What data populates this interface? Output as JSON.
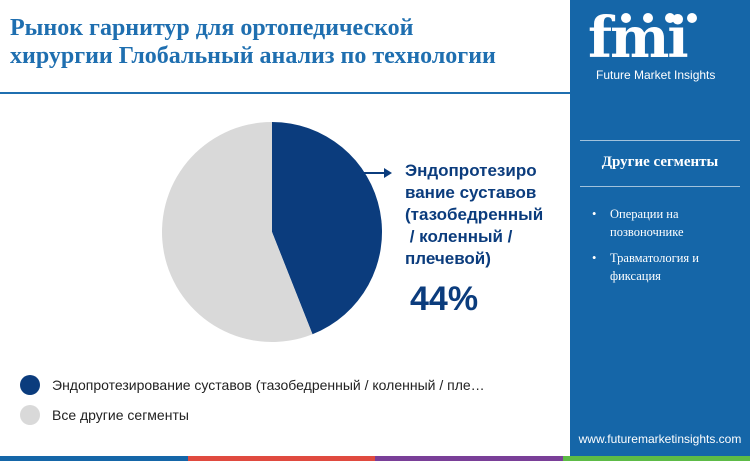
{
  "title": {
    "lines": [
      "Рынок гарнитур для ортопедической",
      "хирургии Глобальный анализ по технологии"
    ]
  },
  "callout": {
    "label_lines": [
      "Эндопротезиро",
      "вание суставов",
      "(тазобедренный",
      " / коленный /",
      "плечевой)"
    ],
    "value": "44%"
  },
  "legend": [
    {
      "label": "Эндопротезирование суставов (тазобедренный / коленный / пле…",
      "color": "#0b3c7d"
    },
    {
      "label": "Все другие сегменты",
      "color": "#d9d9d9"
    }
  ],
  "sidebar": {
    "logo_text": "fmi",
    "logo_subtitle": "Future Market Insights",
    "title": "Другие сегменты",
    "items": [
      "Операции на позвоночнике",
      "Травматология и фиксация"
    ],
    "url": "www.futuremarketinsights.com"
  },
  "colors": {
    "primary": "#0b3c7d",
    "secondary": "#d9d9d9",
    "title": "#1f6fb0",
    "sidebar": "#1566a8",
    "bottom_bar": [
      "#1566a8",
      "#e04a3f",
      "#7a3f98",
      "#5dbb46"
    ]
  },
  "chart_data": {
    "type": "pie",
    "categories": [
      "Эндопротезирование суставов (тазобедренный / коленный / плечевой)",
      "Все другие сегменты"
    ],
    "values": [
      44,
      56
    ],
    "unit": "%",
    "legend_position": "bottom-left"
  }
}
